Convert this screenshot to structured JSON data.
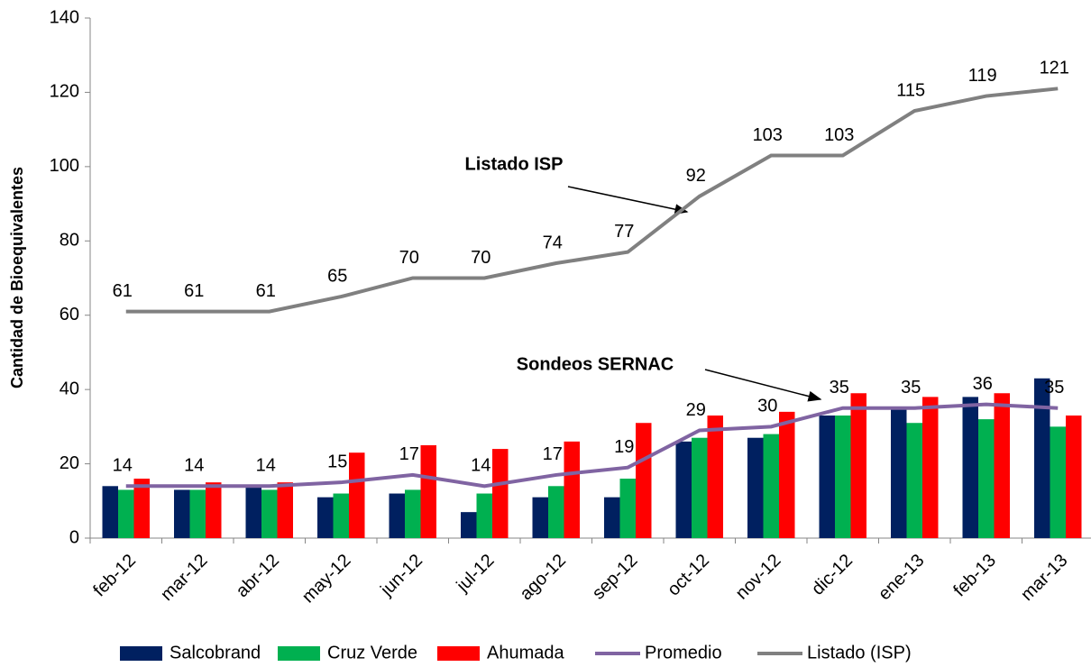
{
  "chart_data": {
    "type": "bar-line",
    "y_label": "Cantidad de Bioequivalentes",
    "categories": [
      "feb-12",
      "mar-12",
      "abr-12",
      "may-12",
      "jun-12",
      "jul-12",
      "ago-12",
      "sep-12",
      "oct-12",
      "nov-12",
      "dic-12",
      "ene-13",
      "feb-13",
      "mar-13"
    ],
    "series": [
      {
        "name": "Salcobrand",
        "type": "bar",
        "color": "#002060",
        "values": [
          14,
          13,
          14,
          11,
          12,
          7,
          11,
          11,
          26,
          27,
          33,
          35,
          38,
          43
        ]
      },
      {
        "name": "Cruz Verde",
        "type": "bar",
        "color": "#00b050",
        "values": [
          13,
          13,
          13,
          12,
          13,
          12,
          14,
          16,
          27,
          28,
          33,
          31,
          32,
          30
        ]
      },
      {
        "name": "Ahumada",
        "type": "bar",
        "color": "#ff0000",
        "values": [
          16,
          15,
          15,
          23,
          25,
          24,
          26,
          31,
          33,
          34,
          39,
          38,
          39,
          33
        ]
      },
      {
        "name": "Promedio",
        "type": "line",
        "color": "#8064a2",
        "values": [
          14,
          14,
          14,
          15,
          17,
          14,
          17,
          19,
          29,
          30,
          35,
          35,
          36,
          35
        ]
      },
      {
        "name": "Listado (ISP)",
        "type": "line",
        "color": "#808080",
        "values": [
          61,
          61,
          61,
          65,
          70,
          70,
          74,
          77,
          92,
          103,
          103,
          115,
          119,
          121
        ]
      }
    ],
    "annotations": [
      {
        "text": "Listado ISP"
      },
      {
        "text": "Sondeos SERNAC"
      }
    ],
    "ylim": [
      0,
      140
    ],
    "yticks": [
      0,
      20,
      40,
      60,
      80,
      100,
      120,
      140
    ],
    "grid": false,
    "legend": "bottom"
  }
}
